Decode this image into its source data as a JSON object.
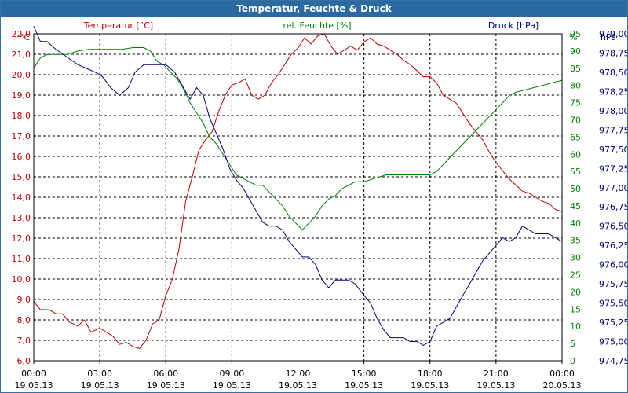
{
  "window": {
    "title": "Temperatur, Feuchte & Druck"
  },
  "chart_data": {
    "type": "line",
    "title": "Temperatur, Feuchte & Druck",
    "legend": [
      "Temperatur [°C]",
      "rel. Feuchte [%]",
      "Druck [hPa]"
    ],
    "axes": {
      "temp": {
        "unit": "°C",
        "min": 6.0,
        "max": 22.0,
        "step": 1.0,
        "color": "#c00000",
        "ticks": [
          "6,0",
          "7,0",
          "8,0",
          "9,0",
          "10,0",
          "11,0",
          "12,0",
          "13,0",
          "14,0",
          "15,0",
          "16,0",
          "17,0",
          "18,0",
          "19,0",
          "20,0",
          "21,0",
          "22,0"
        ]
      },
      "humidity": {
        "unit": "%",
        "min": 0,
        "max": 95,
        "step": 5,
        "color": "#008000",
        "ticks": [
          "0",
          "5",
          "10",
          "15",
          "20",
          "25",
          "30",
          "35",
          "40",
          "45",
          "50",
          "55",
          "60",
          "65",
          "70",
          "75",
          "80",
          "85",
          "90",
          "95"
        ]
      },
      "pressure": {
        "unit": "hPa",
        "min": 974.75,
        "max": 979.0,
        "step": 0.25,
        "color": "#000080",
        "ticks": [
          "974,75",
          "975,00",
          "975,25",
          "975,50",
          "975,75",
          "976,00",
          "976,25",
          "976,50",
          "976,75",
          "977,00",
          "977,25",
          "977,50",
          "977,75",
          "978,00",
          "978,25",
          "978,50",
          "978,75",
          "979,00"
        ]
      },
      "x": {
        "min": 0,
        "max": 24,
        "tick_times": [
          "00:00",
          "03:00",
          "06:00",
          "09:00",
          "12:00",
          "15:00",
          "18:00",
          "21:00",
          "00:00"
        ],
        "tick_dates": [
          "19.05.13",
          "19.05.13",
          "19.05.13",
          "19.05.13",
          "19.05.13",
          "19.05.13",
          "19.05.13",
          "19.05.13",
          "20.05.13"
        ]
      }
    },
    "series": [
      {
        "name": "Temperatur [°C]",
        "axis": "temp",
        "color": "#c00000",
        "points": [
          [
            0,
            8.9
          ],
          [
            0.3,
            8.5
          ],
          [
            0.7,
            8.5
          ],
          [
            1,
            8.3
          ],
          [
            1.3,
            8.3
          ],
          [
            1.6,
            7.9
          ],
          [
            2,
            7.7
          ],
          [
            2.3,
            8.0
          ],
          [
            2.6,
            7.4
          ],
          [
            3,
            7.6
          ],
          [
            3.3,
            7.4
          ],
          [
            3.6,
            7.2
          ],
          [
            3.9,
            6.8
          ],
          [
            4.2,
            6.9
          ],
          [
            4.5,
            6.7
          ],
          [
            4.8,
            6.6
          ],
          [
            5.1,
            7.0
          ],
          [
            5.4,
            7.8
          ],
          [
            5.7,
            8.0
          ],
          [
            6,
            9.2
          ],
          [
            6.3,
            10.0
          ],
          [
            6.6,
            11.5
          ],
          [
            6.9,
            13.8
          ],
          [
            7.2,
            15.0
          ],
          [
            7.5,
            16.3
          ],
          [
            7.8,
            16.8
          ],
          [
            8.1,
            17.2
          ],
          [
            8.4,
            18.2
          ],
          [
            8.7,
            19.0
          ],
          [
            9,
            19.5
          ],
          [
            9.3,
            19.6
          ],
          [
            9.6,
            19.8
          ],
          [
            9.9,
            19.0
          ],
          [
            10.2,
            18.8
          ],
          [
            10.5,
            19.0
          ],
          [
            10.8,
            19.6
          ],
          [
            11.1,
            20.0
          ],
          [
            11.4,
            20.5
          ],
          [
            11.7,
            21.0
          ],
          [
            12,
            21.3
          ],
          [
            12.3,
            21.8
          ],
          [
            12.6,
            21.5
          ],
          [
            12.9,
            21.9
          ],
          [
            13.2,
            22.0
          ],
          [
            13.5,
            21.4
          ],
          [
            13.8,
            21.0
          ],
          [
            14.1,
            21.2
          ],
          [
            14.4,
            21.4
          ],
          [
            14.7,
            21.2
          ],
          [
            15,
            21.6
          ],
          [
            15.3,
            21.8
          ],
          [
            15.6,
            21.5
          ],
          [
            15.9,
            21.4
          ],
          [
            16.2,
            21.2
          ],
          [
            16.5,
            21.0
          ],
          [
            16.8,
            20.7
          ],
          [
            17.1,
            20.5
          ],
          [
            17.4,
            20.2
          ],
          [
            17.7,
            19.9
          ],
          [
            18,
            19.9
          ],
          [
            18.3,
            19.6
          ],
          [
            18.6,
            19.0
          ],
          [
            18.9,
            18.8
          ],
          [
            19.2,
            18.6
          ],
          [
            19.5,
            18.1
          ],
          [
            19.8,
            17.6
          ],
          [
            20.1,
            17.2
          ],
          [
            20.4,
            16.8
          ],
          [
            20.7,
            16.2
          ],
          [
            21,
            15.7
          ],
          [
            21.3,
            15.3
          ],
          [
            21.6,
            14.9
          ],
          [
            21.9,
            14.6
          ],
          [
            22.2,
            14.3
          ],
          [
            22.5,
            14.2
          ],
          [
            22.8,
            14.0
          ],
          [
            23.1,
            13.8
          ],
          [
            23.4,
            13.7
          ],
          [
            23.7,
            13.4
          ],
          [
            24,
            13.3
          ]
        ]
      },
      {
        "name": "rel. Feuchte [%]",
        "axis": "humidity",
        "color": "#008000",
        "points": [
          [
            0,
            85
          ],
          [
            0.3,
            88
          ],
          [
            0.6,
            89
          ],
          [
            1,
            89
          ],
          [
            1.5,
            89
          ],
          [
            2,
            90
          ],
          [
            2.5,
            90.5
          ],
          [
            3,
            90.5
          ],
          [
            3.5,
            90.5
          ],
          [
            4,
            90.5
          ],
          [
            4.5,
            91
          ],
          [
            5,
            91
          ],
          [
            5.3,
            90
          ],
          [
            5.6,
            87
          ],
          [
            5.9,
            86
          ],
          [
            6.2,
            84
          ],
          [
            6.5,
            82
          ],
          [
            6.8,
            79
          ],
          [
            7.1,
            75
          ],
          [
            7.4,
            72
          ],
          [
            7.7,
            69
          ],
          [
            8,
            65
          ],
          [
            8.3,
            63
          ],
          [
            8.6,
            60
          ],
          [
            8.9,
            57
          ],
          [
            9.2,
            54
          ],
          [
            9.5,
            53
          ],
          [
            9.8,
            52
          ],
          [
            10.1,
            51
          ],
          [
            10.4,
            51
          ],
          [
            10.7,
            49
          ],
          [
            11,
            47
          ],
          [
            11.3,
            45
          ],
          [
            11.6,
            42
          ],
          [
            11.9,
            40
          ],
          [
            12.2,
            38
          ],
          [
            12.5,
            40
          ],
          [
            12.8,
            42
          ],
          [
            13.1,
            45
          ],
          [
            13.4,
            47
          ],
          [
            13.7,
            48
          ],
          [
            14,
            50
          ],
          [
            14.3,
            51
          ],
          [
            14.6,
            52
          ],
          [
            15,
            52
          ],
          [
            15.5,
            53
          ],
          [
            16,
            54
          ],
          [
            16.5,
            54
          ],
          [
            17,
            54
          ],
          [
            17.5,
            54
          ],
          [
            18,
            54
          ],
          [
            18.3,
            55
          ],
          [
            18.6,
            57
          ],
          [
            18.9,
            59
          ],
          [
            19.2,
            61
          ],
          [
            19.5,
            63
          ],
          [
            19.8,
            65
          ],
          [
            20.1,
            67
          ],
          [
            20.4,
            69
          ],
          [
            20.7,
            71
          ],
          [
            21,
            73
          ],
          [
            21.3,
            75
          ],
          [
            21.6,
            77
          ],
          [
            21.9,
            78
          ],
          [
            22.2,
            78.5
          ],
          [
            22.5,
            79
          ],
          [
            22.8,
            79.5
          ],
          [
            23.1,
            80
          ],
          [
            23.4,
            80.5
          ],
          [
            23.7,
            81
          ],
          [
            24,
            81.5
          ]
        ]
      },
      {
        "name": "Druck [hPa]",
        "axis": "pressure",
        "color": "#000080",
        "points": [
          [
            0,
            979.1
          ],
          [
            0.3,
            978.9
          ],
          [
            0.6,
            978.9
          ],
          [
            1,
            978.8
          ],
          [
            1.5,
            978.7
          ],
          [
            2,
            978.6
          ],
          [
            2.4,
            978.55
          ],
          [
            2.8,
            978.5
          ],
          [
            3.1,
            978.45
          ],
          [
            3.5,
            978.3
          ],
          [
            3.9,
            978.2
          ],
          [
            4.3,
            978.3
          ],
          [
            4.6,
            978.5
          ],
          [
            5,
            978.6
          ],
          [
            5.5,
            978.6
          ],
          [
            6,
            978.6
          ],
          [
            6.4,
            978.5
          ],
          [
            6.8,
            978.3
          ],
          [
            7.1,
            978.15
          ],
          [
            7.4,
            978.3
          ],
          [
            7.7,
            978.2
          ],
          [
            8,
            977.9
          ],
          [
            8.3,
            977.7
          ],
          [
            8.6,
            977.5
          ],
          [
            8.9,
            977.25
          ],
          [
            9.2,
            977.1
          ],
          [
            9.5,
            977.0
          ],
          [
            9.8,
            976.85
          ],
          [
            10.1,
            976.7
          ],
          [
            10.4,
            976.55
          ],
          [
            10.7,
            976.5
          ],
          [
            11,
            976.5
          ],
          [
            11.3,
            976.45
          ],
          [
            11.6,
            976.3
          ],
          [
            11.9,
            976.2
          ],
          [
            12.2,
            976.1
          ],
          [
            12.5,
            976.1
          ],
          [
            12.8,
            976.0
          ],
          [
            13.1,
            975.8
          ],
          [
            13.4,
            975.7
          ],
          [
            13.7,
            975.8
          ],
          [
            14,
            975.8
          ],
          [
            14.3,
            975.8
          ],
          [
            14.6,
            975.75
          ],
          [
            15,
            975.6
          ],
          [
            15.3,
            975.5
          ],
          [
            15.6,
            975.3
          ],
          [
            15.9,
            975.15
          ],
          [
            16.2,
            975.05
          ],
          [
            16.5,
            975.05
          ],
          [
            16.8,
            975.05
          ],
          [
            17.1,
            975.0
          ],
          [
            17.4,
            975.0
          ],
          [
            17.7,
            974.95
          ],
          [
            18,
            975.0
          ],
          [
            18.3,
            975.2
          ],
          [
            18.6,
            975.25
          ],
          [
            18.9,
            975.3
          ],
          [
            19.2,
            975.45
          ],
          [
            19.5,
            975.6
          ],
          [
            19.8,
            975.75
          ],
          [
            20.1,
            975.9
          ],
          [
            20.4,
            976.05
          ],
          [
            20.7,
            976.15
          ],
          [
            21,
            976.25
          ],
          [
            21.3,
            976.35
          ],
          [
            21.6,
            976.3
          ],
          [
            21.9,
            976.35
          ],
          [
            22.2,
            976.5
          ],
          [
            22.5,
            976.45
          ],
          [
            22.8,
            976.4
          ],
          [
            23.1,
            976.4
          ],
          [
            23.4,
            976.4
          ],
          [
            23.7,
            976.35
          ],
          [
            24,
            976.3
          ]
        ]
      }
    ]
  }
}
